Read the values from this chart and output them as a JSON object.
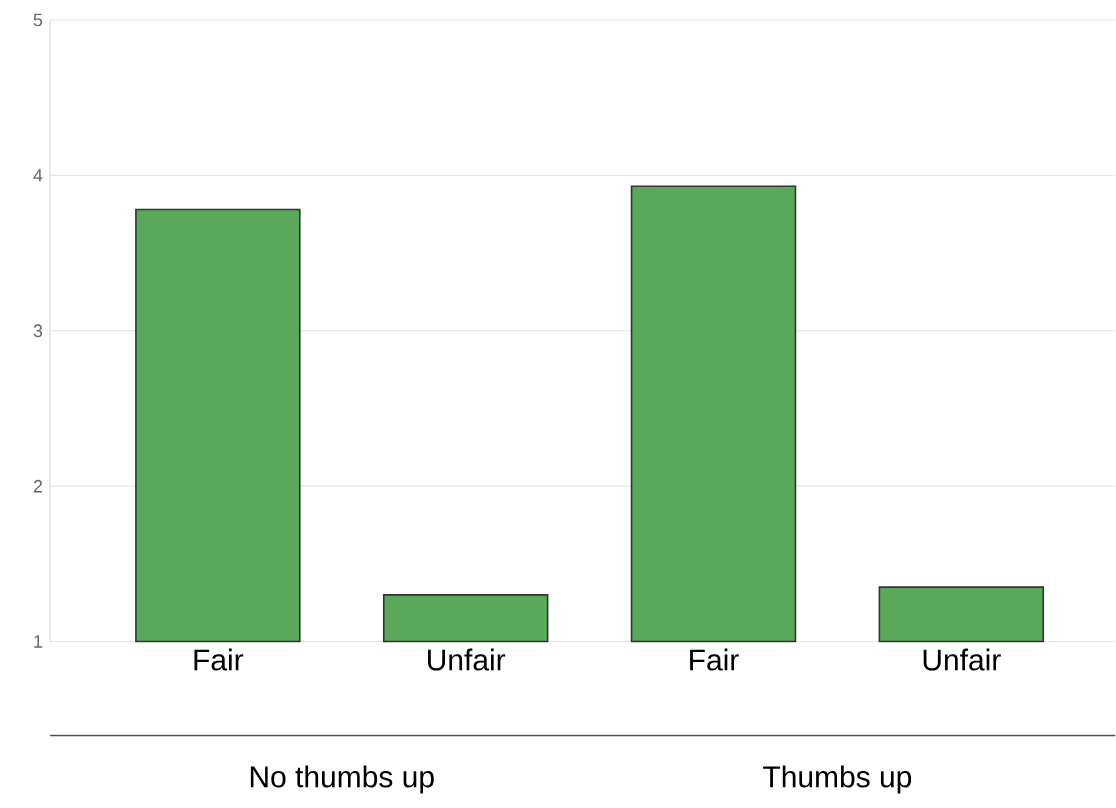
{
  "chart_data": {
    "type": "bar",
    "categories": [
      "Fair",
      "Unfair",
      "Fair",
      "Unfair"
    ],
    "values": [
      3.78,
      1.3,
      3.93,
      1.35
    ],
    "color": "#5aa95a",
    "ylim": [
      1,
      5
    ],
    "yticks": [
      1,
      2,
      3,
      4,
      5
    ],
    "grid": "y",
    "annotations": [
      "No thumbs up",
      "Thumbs up"
    ]
  }
}
